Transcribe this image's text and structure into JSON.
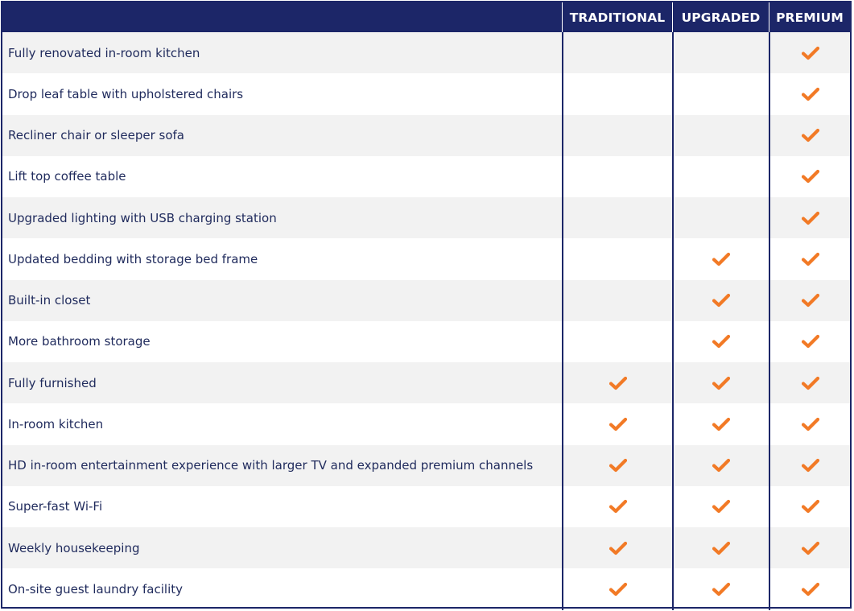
{
  "columns": {
    "traditional": "TRADITIONAL",
    "upgraded": "UPGRADED",
    "premium": "PREMIUM"
  },
  "check_color": "#f27a26",
  "check_icon": "checkmark-icon",
  "rows": [
    {
      "feature": "Fully renovated in-room kitchen",
      "traditional": false,
      "upgraded": false,
      "premium": true
    },
    {
      "feature": "Drop leaf table with upholstered chairs",
      "traditional": false,
      "upgraded": false,
      "premium": true
    },
    {
      "feature": "Recliner chair or sleeper sofa",
      "traditional": false,
      "upgraded": false,
      "premium": true
    },
    {
      "feature": "Lift top coffee table",
      "traditional": false,
      "upgraded": false,
      "premium": true
    },
    {
      "feature": "Upgraded lighting with USB charging station",
      "traditional": false,
      "upgraded": false,
      "premium": true
    },
    {
      "feature": "Updated bedding with storage bed frame",
      "traditional": false,
      "upgraded": true,
      "premium": true
    },
    {
      "feature": "Built-in closet",
      "traditional": false,
      "upgraded": true,
      "premium": true
    },
    {
      "feature": "More bathroom storage",
      "traditional": false,
      "upgraded": true,
      "premium": true
    },
    {
      "feature": "Fully furnished",
      "traditional": true,
      "upgraded": true,
      "premium": true
    },
    {
      "feature": "In-room kitchen",
      "traditional": true,
      "upgraded": true,
      "premium": true
    },
    {
      "feature": "HD in-room entertainment experience with larger TV and expanded premium channels",
      "traditional": true,
      "upgraded": true,
      "premium": true
    },
    {
      "feature": "Super-fast Wi-Fi",
      "traditional": true,
      "upgraded": true,
      "premium": true
    },
    {
      "feature": "Weekly housekeeping",
      "traditional": true,
      "upgraded": true,
      "premium": true
    },
    {
      "feature": "On-site guest laundry facility",
      "traditional": true,
      "upgraded": true,
      "premium": true
    }
  ]
}
